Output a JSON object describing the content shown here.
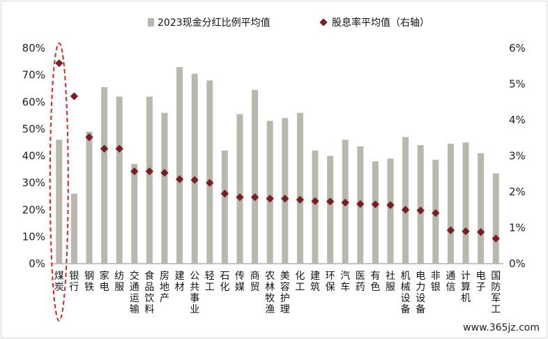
{
  "chart_data": {
    "type": "bar",
    "legend": {
      "position": "top"
    },
    "y_left": {
      "min": 0,
      "max": 80,
      "step": 10,
      "unit": "%"
    },
    "y_right": {
      "min": 0,
      "max": 6,
      "step": 1,
      "unit": "%"
    },
    "categories": [
      "煤炭",
      "银行",
      "钢铁",
      "家电",
      "纺服",
      "交通运输",
      "食品饮料",
      "房地产",
      "建材",
      "公共事业",
      "轻工",
      "石化",
      "传媒",
      "商贸",
      "农林牧渔",
      "美容护理",
      "化工",
      "建筑",
      "环保",
      "汽车",
      "医药",
      "有色",
      "社服",
      "机械设备",
      "电力设备",
      "非银",
      "通信",
      "计算机",
      "电子",
      "国防军工"
    ],
    "series": [
      {
        "name": "2023现金分红比例平均值",
        "kind": "bar",
        "axis": "left",
        "color": "#b8b8ac",
        "values": [
          46,
          26,
          49,
          65.5,
          62,
          37,
          62,
          56,
          73,
          70.5,
          68,
          42,
          55.5,
          64.5,
          53,
          54,
          56,
          42,
          40,
          46,
          43.5,
          38,
          39,
          47,
          44,
          38.5,
          44.5,
          45,
          41,
          33.5
        ]
      },
      {
        "name": "股息率平均值（右轴）",
        "kind": "marker",
        "axis": "right",
        "color": "#7a1e22",
        "values": [
          5.58,
          4.66,
          3.52,
          3.2,
          3.2,
          2.57,
          2.57,
          2.53,
          2.35,
          2.33,
          2.25,
          1.95,
          1.85,
          1.85,
          1.81,
          1.81,
          1.78,
          1.74,
          1.73,
          1.7,
          1.66,
          1.65,
          1.63,
          1.5,
          1.48,
          1.41,
          0.93,
          0.9,
          0.88,
          0.7
        ]
      }
    ],
    "highlight": {
      "category": "煤炭",
      "style": "dashed-ellipse",
      "color": "#e02020"
    }
  },
  "watermark": "www.365jz.com"
}
